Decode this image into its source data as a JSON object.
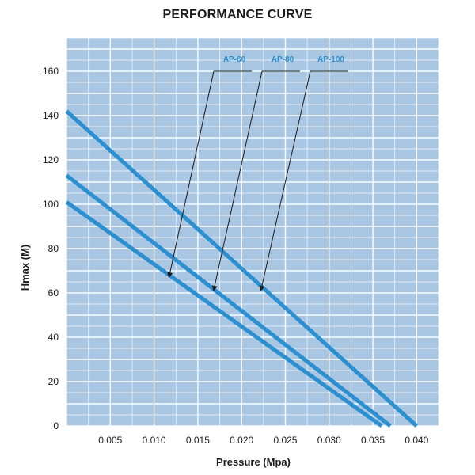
{
  "chart_data": {
    "type": "line",
    "title": "PERFORMANCE CURVE",
    "xlabel": "Pressure (Mpa)",
    "ylabel": "Hmax (M)",
    "xlim": [
      0,
      0.0425
    ],
    "ylim": [
      0,
      175
    ],
    "xticks": [
      "0.005",
      "0.010",
      "0.015",
      "0.020",
      "0.025",
      "0.030",
      "0.035",
      "0.040"
    ],
    "yticks": [
      "0",
      "20",
      "40",
      "60",
      "80",
      "100",
      "120",
      "140",
      "160"
    ],
    "grid": true,
    "background_color": "#a9c6e3",
    "grid_color": "#ffffff",
    "line_color": "#2b8fd0",
    "series": [
      {
        "name": "AP-60",
        "x": [
          0,
          0.036
        ],
        "y": [
          101,
          0
        ],
        "pointer": {
          "x": 0.0117,
          "y": 67
        }
      },
      {
        "name": "AP-80",
        "x": [
          0,
          0.037
        ],
        "y": [
          113,
          0
        ],
        "pointer": {
          "x": 0.0168,
          "y": 61
        }
      },
      {
        "name": "AP-100",
        "x": [
          0,
          0.04
        ],
        "y": [
          142,
          0
        ],
        "pointer": {
          "x": 0.0222,
          "y": 61
        }
      }
    ]
  }
}
